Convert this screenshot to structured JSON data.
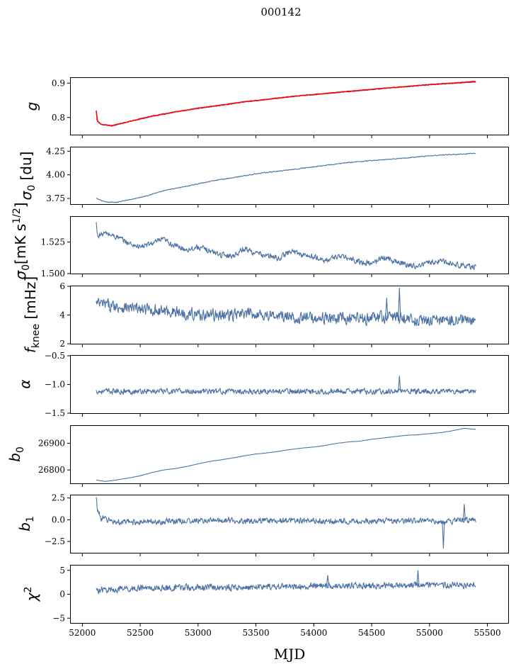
{
  "title": "000142",
  "colors": {
    "series": "#4c72a4",
    "fit": "#ff0000",
    "axes": "#000000"
  },
  "chart_data": [
    {
      "type": "line",
      "ylabel": "g",
      "xlim": [
        51900,
        55680
      ],
      "ylim": [
        0.75,
        0.915
      ],
      "yticks": [
        0.8,
        0.9
      ],
      "ytick_labels": [
        "0.8",
        "0.9"
      ],
      "series": [
        {
          "style": "noisy-blue",
          "x": [
            52120,
            52160,
            52250,
            52400,
            52600,
            52800,
            53000,
            53200,
            53400,
            53600,
            53800,
            54000,
            54200,
            54400,
            54600,
            54800,
            55000,
            55200,
            55400
          ],
          "y": [
            0.795,
            0.78,
            0.775,
            0.787,
            0.803,
            0.815,
            0.826,
            0.835,
            0.845,
            0.852,
            0.86,
            0.866,
            0.872,
            0.878,
            0.884,
            0.889,
            0.895,
            0.899,
            0.903
          ]
        },
        {
          "style": "red-overlay",
          "x": [
            52120,
            52130,
            52160,
            52250,
            52400,
            52600,
            52800,
            53000,
            53200,
            53400,
            53600,
            53800,
            54000,
            54200,
            54400,
            54600,
            54800,
            55000,
            55200,
            55400
          ],
          "y": [
            0.82,
            0.79,
            0.78,
            0.776,
            0.788,
            0.804,
            0.816,
            0.827,
            0.836,
            0.846,
            0.853,
            0.861,
            0.867,
            0.873,
            0.879,
            0.885,
            0.89,
            0.896,
            0.9,
            0.905
          ]
        }
      ]
    },
    {
      "type": "line",
      "ylabel": "σ0 [du]",
      "xlim": [
        51900,
        55680
      ],
      "ylim": [
        3.69,
        4.29
      ],
      "yticks": [
        3.75,
        4.0,
        4.25
      ],
      "ytick_labels": [
        "3.75",
        "4.00",
        "4.25"
      ],
      "series": [
        {
          "style": "noisy-blue",
          "x": [
            52120,
            52200,
            52300,
            52500,
            52700,
            52900,
            53100,
            53300,
            53500,
            53700,
            53900,
            54100,
            54300,
            54500,
            54700,
            54900,
            55100,
            55300,
            55400
          ],
          "y": [
            3.75,
            3.71,
            3.71,
            3.76,
            3.83,
            3.88,
            3.93,
            3.97,
            4.01,
            4.04,
            4.07,
            4.1,
            4.13,
            4.15,
            4.17,
            4.19,
            4.21,
            4.22,
            4.23
          ]
        }
      ]
    },
    {
      "type": "line",
      "ylabel": "σ0[mK s^1/2]",
      "xlim": [
        51900,
        55680
      ],
      "ylim": [
        1.5,
        1.545
      ],
      "yticks": [
        1.5,
        1.525
      ],
      "ytick_labels": [
        "1.500",
        "1.525"
      ],
      "series": [
        {
          "style": "noisy-blue",
          "x": [
            52120,
            52130,
            52200,
            52300,
            52400,
            52500,
            52600,
            52700,
            52800,
            52900,
            53000,
            53100,
            53200,
            53300,
            53400,
            53500,
            53600,
            53700,
            53800,
            53900,
            54000,
            54100,
            54200,
            54300,
            54400,
            54500,
            54600,
            54700,
            54800,
            54900,
            55000,
            55100,
            55200,
            55300,
            55400
          ],
          "y": [
            1.54,
            1.53,
            1.532,
            1.529,
            1.524,
            1.521,
            1.524,
            1.527,
            1.522,
            1.519,
            1.521,
            1.518,
            1.515,
            1.514,
            1.52,
            1.516,
            1.514,
            1.512,
            1.518,
            1.515,
            1.513,
            1.51,
            1.514,
            1.512,
            1.509,
            1.508,
            1.513,
            1.51,
            1.507,
            1.506,
            1.509,
            1.51,
            1.508,
            1.506,
            1.505
          ]
        }
      ]
    },
    {
      "type": "line",
      "ylabel": "f_knee [mHz]",
      "xlim": [
        51900,
        55680
      ],
      "ylim": [
        2,
        6
      ],
      "yticks": [
        2,
        4,
        6
      ],
      "ytick_labels": [
        "2",
        "4",
        "6"
      ],
      "series": [
        {
          "style": "noisy-blue",
          "x": [
            52120,
            52300,
            52500,
            52700,
            52900,
            53100,
            53300,
            53500,
            53700,
            53900,
            54100,
            54300,
            54500,
            54700,
            54900,
            55100,
            55300,
            55400
          ],
          "y": [
            4.8,
            4.6,
            4.4,
            4.3,
            4.1,
            4.0,
            4.0,
            4.1,
            3.9,
            3.8,
            3.8,
            3.7,
            3.8,
            3.9,
            3.6,
            3.6,
            3.7,
            3.5
          ]
        }
      ]
    },
    {
      "type": "line",
      "ylabel": "α",
      "xlim": [
        51900,
        55680
      ],
      "ylim": [
        -1.5,
        -0.5
      ],
      "yticks": [
        -1.5,
        -1.0,
        -0.5
      ],
      "ytick_labels": [
        "−1.5",
        "−1.0",
        "−0.5"
      ],
      "series": [
        {
          "style": "noisy-blue",
          "x": [
            52120,
            52500,
            53000,
            53500,
            54000,
            54500,
            55000,
            55400
          ],
          "y": [
            -1.12,
            -1.12,
            -1.12,
            -1.12,
            -1.12,
            -1.12,
            -1.12,
            -1.12
          ]
        }
      ]
    },
    {
      "type": "line",
      "ylabel": "b0",
      "xlim": [
        51900,
        55680
      ],
      "ylim": [
        26750,
        26965
      ],
      "yticks": [
        26800,
        26900
      ],
      "ytick_labels": [
        "26800",
        "26900"
      ],
      "series": [
        {
          "style": "smooth-blue",
          "x": [
            52120,
            52200,
            52300,
            52400,
            52500,
            52600,
            52700,
            52800,
            52900,
            53000,
            53100,
            53200,
            53300,
            53400,
            53500,
            53600,
            53700,
            53800,
            53900,
            54000,
            54100,
            54200,
            54300,
            54400,
            54500,
            54600,
            54700,
            54800,
            54900,
            55000,
            55100,
            55200,
            55300,
            55400
          ],
          "y": [
            26762,
            26757,
            26763,
            26770,
            26778,
            26790,
            26800,
            26805,
            26813,
            26823,
            26832,
            26838,
            26845,
            26853,
            26860,
            26864,
            26870,
            26877,
            26882,
            26886,
            26892,
            26900,
            26905,
            26908,
            26915,
            26920,
            26925,
            26930,
            26932,
            26936,
            26940,
            26947,
            26956,
            26952
          ]
        }
      ]
    },
    {
      "type": "line",
      "ylabel": "b1",
      "xlim": [
        51900,
        55680
      ],
      "ylim": [
        -3.8,
        2.8
      ],
      "yticks": [
        -2.5,
        0.0,
        2.5
      ],
      "ytick_labels": [
        "−2.5",
        "0.0",
        "2.5"
      ],
      "series": [
        {
          "style": "noisy-blue",
          "x": [
            52120,
            52130,
            52160,
            52300,
            52700,
            53100,
            53500,
            53900,
            54300,
            54700,
            55100,
            55400
          ],
          "y": [
            2.4,
            1.2,
            0.2,
            -0.3,
            -0.2,
            -0.1,
            -0.1,
            -0.1,
            -0.2,
            -0.1,
            -0.2,
            0.0
          ]
        }
      ]
    },
    {
      "type": "line",
      "ylabel": "χ^2",
      "xlim": [
        51900,
        55680
      ],
      "ylim": [
        -6,
        6
      ],
      "yticks": [
        -5,
        0,
        5
      ],
      "ytick_labels": [
        "−5",
        "0",
        "5"
      ],
      "series": [
        {
          "style": "noisy-blue",
          "x": [
            52120,
            52300,
            52500,
            52700,
            52900,
            53100,
            53300,
            53500,
            53700,
            53900,
            54100,
            54300,
            54500,
            54700,
            54900,
            55100,
            55300,
            55400
          ],
          "y": [
            0.8,
            1.0,
            1.3,
            1.3,
            1.4,
            1.4,
            1.4,
            1.5,
            1.6,
            1.7,
            1.8,
            1.8,
            1.8,
            1.9,
            1.9,
            1.9,
            2.0,
            2.1
          ]
        }
      ]
    }
  ],
  "xaxis": {
    "xlabel": "MJD",
    "xticks": [
      52000,
      52500,
      53000,
      53500,
      54000,
      54500,
      55000,
      55500
    ],
    "xtick_labels": [
      "52000",
      "52500",
      "53000",
      "53500",
      "54000",
      "54500",
      "55000",
      "55500"
    ]
  }
}
